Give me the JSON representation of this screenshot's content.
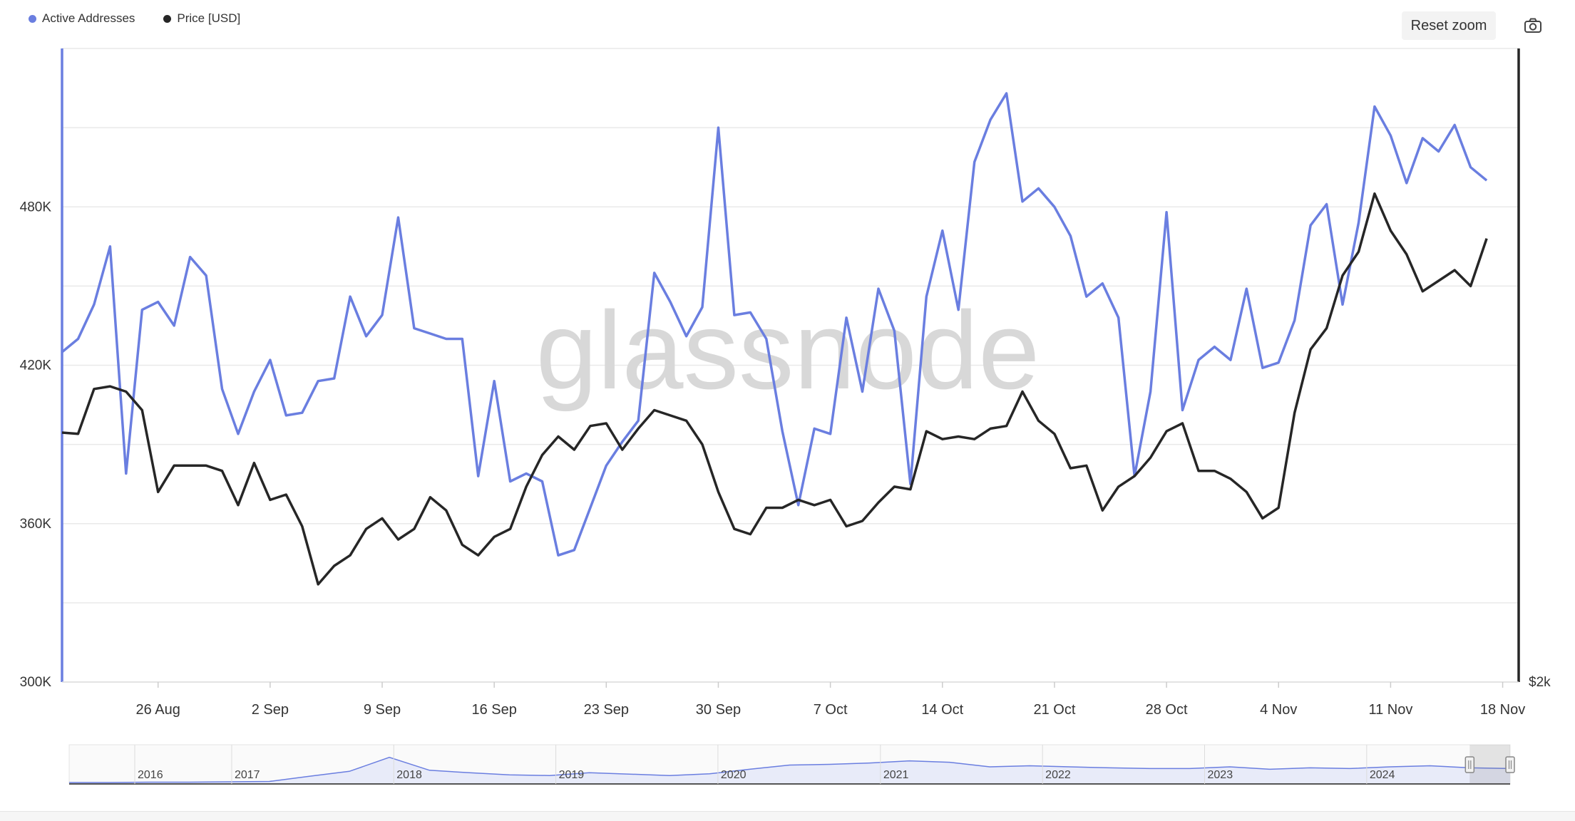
{
  "legend": {
    "series1_label": "Active Addresses",
    "series2_label": "Price [USD]"
  },
  "toolbar": {
    "reset_zoom_label": "Reset zoom",
    "camera_icon": "camera-icon"
  },
  "colors": {
    "active_addresses": "#6a7ee0",
    "price": "#262626",
    "grid": "#e9e9e9"
  },
  "watermark": "glassnode",
  "chart_data": {
    "type": "line",
    "y_left": {
      "ticks": [
        300000,
        360000,
        420000,
        480000
      ],
      "tick_labels": [
        "300K",
        "360K",
        "420K",
        "480K"
      ],
      "range": [
        300000,
        540000
      ]
    },
    "y_right": {
      "tick_labels": [
        "$2k"
      ]
    },
    "x": {
      "range": [
        "2024-08-20",
        "2024-11-19"
      ],
      "tick_labels": [
        "26 Aug",
        "2 Sep",
        "9 Sep",
        "16 Sep",
        "23 Sep",
        "30 Sep",
        "7 Oct",
        "14 Oct",
        "21 Oct",
        "28 Oct",
        "4 Nov",
        "11 Nov",
        "18 Nov"
      ],
      "tick_dates": [
        "2024-08-26",
        "2024-09-02",
        "2024-09-09",
        "2024-09-16",
        "2024-09-23",
        "2024-09-30",
        "2024-10-07",
        "2024-10-14",
        "2024-10-21",
        "2024-10-28",
        "2024-11-04",
        "2024-11-11",
        "2024-11-18"
      ]
    },
    "grid": true,
    "legend_position": "top-left",
    "series": [
      {
        "name": "Active Addresses",
        "axis": "left",
        "points": [
          [
            "2024-08-20",
            425000
          ],
          [
            "2024-08-21",
            430000
          ],
          [
            "2024-08-22",
            443000
          ],
          [
            "2024-08-23",
            465000
          ],
          [
            "2024-08-24",
            379000
          ],
          [
            "2024-08-25",
            441000
          ],
          [
            "2024-08-26",
            444000
          ],
          [
            "2024-08-27",
            435000
          ],
          [
            "2024-08-28",
            461000
          ],
          [
            "2024-08-29",
            454000
          ],
          [
            "2024-08-30",
            411000
          ],
          [
            "2024-08-31",
            394000
          ],
          [
            "2024-09-01",
            410000
          ],
          [
            "2024-09-02",
            422000
          ],
          [
            "2024-09-03",
            401000
          ],
          [
            "2024-09-04",
            402000
          ],
          [
            "2024-09-05",
            414000
          ],
          [
            "2024-09-06",
            415000
          ],
          [
            "2024-09-07",
            446000
          ],
          [
            "2024-09-08",
            431000
          ],
          [
            "2024-09-09",
            439000
          ],
          [
            "2024-09-10",
            476000
          ],
          [
            "2024-09-11",
            434000
          ],
          [
            "2024-09-12",
            432000
          ],
          [
            "2024-09-13",
            430000
          ],
          [
            "2024-09-14",
            430000
          ],
          [
            "2024-09-15",
            378000
          ],
          [
            "2024-09-16",
            414000
          ],
          [
            "2024-09-17",
            376000
          ],
          [
            "2024-09-18",
            379000
          ],
          [
            "2024-09-19",
            376000
          ],
          [
            "2024-09-20",
            348000
          ],
          [
            "2024-09-21",
            350000
          ],
          [
            "2024-09-22",
            366000
          ],
          [
            "2024-09-23",
            382000
          ],
          [
            "2024-09-24",
            391000
          ],
          [
            "2024-09-25",
            399000
          ],
          [
            "2024-09-26",
            455000
          ],
          [
            "2024-09-27",
            444000
          ],
          [
            "2024-09-28",
            431000
          ],
          [
            "2024-09-29",
            442000
          ],
          [
            "2024-09-30",
            510000
          ],
          [
            "2024-10-01",
            439000
          ],
          [
            "2024-10-02",
            440000
          ],
          [
            "2024-10-03",
            430000
          ],
          [
            "2024-10-04",
            395000
          ],
          [
            "2024-10-05",
            367000
          ],
          [
            "2024-10-06",
            396000
          ],
          [
            "2024-10-07",
            394000
          ],
          [
            "2024-10-08",
            438000
          ],
          [
            "2024-10-09",
            410000
          ],
          [
            "2024-10-10",
            449000
          ],
          [
            "2024-10-11",
            433000
          ],
          [
            "2024-10-12",
            375000
          ],
          [
            "2024-10-13",
            446000
          ],
          [
            "2024-10-14",
            471000
          ],
          [
            "2024-10-15",
            441000
          ],
          [
            "2024-10-16",
            497000
          ],
          [
            "2024-10-17",
            513000
          ],
          [
            "2024-10-18",
            523000
          ],
          [
            "2024-10-19",
            482000
          ],
          [
            "2024-10-20",
            487000
          ],
          [
            "2024-10-21",
            480000
          ],
          [
            "2024-10-22",
            469000
          ],
          [
            "2024-10-23",
            446000
          ],
          [
            "2024-10-24",
            451000
          ],
          [
            "2024-10-25",
            438000
          ],
          [
            "2024-10-26",
            378000
          ],
          [
            "2024-10-27",
            410000
          ],
          [
            "2024-10-28",
            478000
          ],
          [
            "2024-10-29",
            403000
          ],
          [
            "2024-10-30",
            422000
          ],
          [
            "2024-10-31",
            427000
          ],
          [
            "2024-11-01",
            422000
          ],
          [
            "2024-11-02",
            449000
          ],
          [
            "2024-11-03",
            419000
          ],
          [
            "2024-11-04",
            421000
          ],
          [
            "2024-11-05",
            437000
          ],
          [
            "2024-11-06",
            473000
          ],
          [
            "2024-11-07",
            481000
          ],
          [
            "2024-11-08",
            443000
          ],
          [
            "2024-11-09",
            474000
          ],
          [
            "2024-11-10",
            518000
          ],
          [
            "2024-11-11",
            507000
          ],
          [
            "2024-11-12",
            489000
          ],
          [
            "2024-11-13",
            506000
          ],
          [
            "2024-11-14",
            501000
          ],
          [
            "2024-11-15",
            511000
          ],
          [
            "2024-11-16",
            495000
          ],
          [
            "2024-11-17",
            490000
          ]
        ]
      },
      {
        "name": "Price [USD]",
        "axis": "right",
        "points": [
          [
            "2024-08-20",
            394500
          ],
          [
            "2024-08-21",
            394000
          ],
          [
            "2024-08-22",
            411000
          ],
          [
            "2024-08-23",
            412000
          ],
          [
            "2024-08-24",
            410000
          ],
          [
            "2024-08-25",
            403000
          ],
          [
            "2024-08-26",
            372000
          ],
          [
            "2024-08-27",
            382000
          ],
          [
            "2024-08-28",
            382000
          ],
          [
            "2024-08-29",
            382000
          ],
          [
            "2024-08-30",
            380000
          ],
          [
            "2024-08-31",
            367000
          ],
          [
            "2024-09-01",
            383000
          ],
          [
            "2024-09-02",
            369000
          ],
          [
            "2024-09-03",
            371000
          ],
          [
            "2024-09-04",
            359000
          ],
          [
            "2024-09-05",
            337000
          ],
          [
            "2024-09-06",
            344000
          ],
          [
            "2024-09-07",
            348000
          ],
          [
            "2024-09-08",
            358000
          ],
          [
            "2024-09-09",
            362000
          ],
          [
            "2024-09-10",
            354000
          ],
          [
            "2024-09-11",
            358000
          ],
          [
            "2024-09-12",
            370000
          ],
          [
            "2024-09-13",
            365000
          ],
          [
            "2024-09-14",
            352000
          ],
          [
            "2024-09-15",
            348000
          ],
          [
            "2024-09-16",
            355000
          ],
          [
            "2024-09-17",
            358000
          ],
          [
            "2024-09-18",
            374000
          ],
          [
            "2024-09-19",
            386000
          ],
          [
            "2024-09-20",
            393000
          ],
          [
            "2024-09-21",
            388000
          ],
          [
            "2024-09-22",
            397000
          ],
          [
            "2024-09-23",
            398000
          ],
          [
            "2024-09-24",
            388000
          ],
          [
            "2024-09-25",
            396000
          ],
          [
            "2024-09-26",
            403000
          ],
          [
            "2024-09-27",
            401000
          ],
          [
            "2024-09-28",
            399000
          ],
          [
            "2024-09-29",
            390000
          ],
          [
            "2024-09-30",
            372000
          ],
          [
            "2024-10-01",
            358000
          ],
          [
            "2024-10-02",
            356000
          ],
          [
            "2024-10-03",
            366000
          ],
          [
            "2024-10-04",
            366000
          ],
          [
            "2024-10-05",
            369000
          ],
          [
            "2024-10-06",
            367000
          ],
          [
            "2024-10-07",
            369000
          ],
          [
            "2024-10-08",
            359000
          ],
          [
            "2024-10-09",
            361000
          ],
          [
            "2024-10-10",
            368000
          ],
          [
            "2024-10-11",
            374000
          ],
          [
            "2024-10-12",
            373000
          ],
          [
            "2024-10-13",
            395000
          ],
          [
            "2024-10-14",
            392000
          ],
          [
            "2024-10-15",
            393000
          ],
          [
            "2024-10-16",
            392000
          ],
          [
            "2024-10-17",
            396000
          ],
          [
            "2024-10-18",
            397000
          ],
          [
            "2024-10-19",
            410000
          ],
          [
            "2024-10-20",
            399000
          ],
          [
            "2024-10-21",
            394000
          ],
          [
            "2024-10-22",
            381000
          ],
          [
            "2024-10-23",
            382000
          ],
          [
            "2024-10-24",
            365000
          ],
          [
            "2024-10-25",
            374000
          ],
          [
            "2024-10-26",
            378000
          ],
          [
            "2024-10-27",
            385000
          ],
          [
            "2024-10-28",
            395000
          ],
          [
            "2024-10-29",
            398000
          ],
          [
            "2024-10-30",
            380000
          ],
          [
            "2024-10-31",
            380000
          ],
          [
            "2024-11-01",
            377000
          ],
          [
            "2024-11-02",
            372000
          ],
          [
            "2024-11-03",
            362000
          ],
          [
            "2024-11-04",
            366000
          ],
          [
            "2024-11-05",
            402000
          ],
          [
            "2024-11-06",
            426000
          ],
          [
            "2024-11-07",
            434000
          ],
          [
            "2024-11-08",
            454000
          ],
          [
            "2024-11-09",
            463000
          ],
          [
            "2024-11-10",
            485000
          ],
          [
            "2024-11-11",
            471000
          ],
          [
            "2024-11-12",
            462000
          ],
          [
            "2024-11-13",
            448000
          ],
          [
            "2024-11-14",
            452000
          ],
          [
            "2024-11-15",
            456000
          ],
          [
            "2024-11-16",
            450000
          ],
          [
            "2024-11-17",
            468000
          ]
        ]
      }
    ],
    "navigator": {
      "year_labels": [
        "2016",
        "2017",
        "2018",
        "2019",
        "2020",
        "2021",
        "2022",
        "2023",
        "2024"
      ],
      "values": [
        0.0,
        0.0,
        0.01,
        0.01,
        0.02,
        0.03,
        0.18,
        0.32,
        0.72,
        0.35,
        0.28,
        0.22,
        0.2,
        0.28,
        0.24,
        0.2,
        0.25,
        0.38,
        0.5,
        0.52,
        0.56,
        0.62,
        0.58,
        0.45,
        0.48,
        0.45,
        0.42,
        0.4,
        0.4,
        0.45,
        0.38,
        0.42,
        0.4,
        0.45,
        0.48,
        0.42,
        0.4
      ],
      "selection": [
        "2024-08-20",
        "2024-11-19"
      ]
    }
  }
}
